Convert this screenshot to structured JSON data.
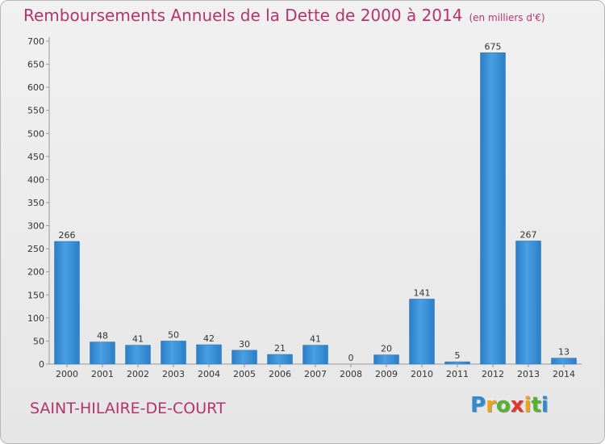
{
  "chart_data": {
    "type": "bar",
    "title": "Remboursements Annuels de la Dette de 2000 à 2014",
    "subtitle": "(en milliers d'€)",
    "categories": [
      "2000",
      "2001",
      "2002",
      "2003",
      "2004",
      "2005",
      "2006",
      "2007",
      "2008",
      "2009",
      "2010",
      "2011",
      "2012",
      "2013",
      "2014"
    ],
    "values": [
      266,
      48,
      41,
      50,
      42,
      30,
      21,
      41,
      0,
      20,
      141,
      5,
      675,
      267,
      13
    ],
    "ylim": [
      0,
      700
    ],
    "yticks": [
      0,
      50,
      100,
      150,
      200,
      250,
      300,
      350,
      400,
      450,
      500,
      550,
      600,
      650,
      700
    ],
    "xlabel": "",
    "ylabel": "",
    "grid": false,
    "bar_color": "#3d8fd4"
  },
  "location_label": "SAINT-HILAIRE-DE-COURT",
  "brand": {
    "text": "Proxiti",
    "letters": [
      {
        "char": "P",
        "color": "#2e8bd4"
      },
      {
        "char": "r",
        "color": "#f0a21c"
      },
      {
        "char": "o",
        "color": "#57b232"
      },
      {
        "char": "x",
        "color": "#e23232"
      },
      {
        "char": "i",
        "color": "#f0a21c"
      },
      {
        "char": "t",
        "color": "#57b232"
      },
      {
        "char": "i",
        "color": "#2e8bd4"
      }
    ]
  }
}
